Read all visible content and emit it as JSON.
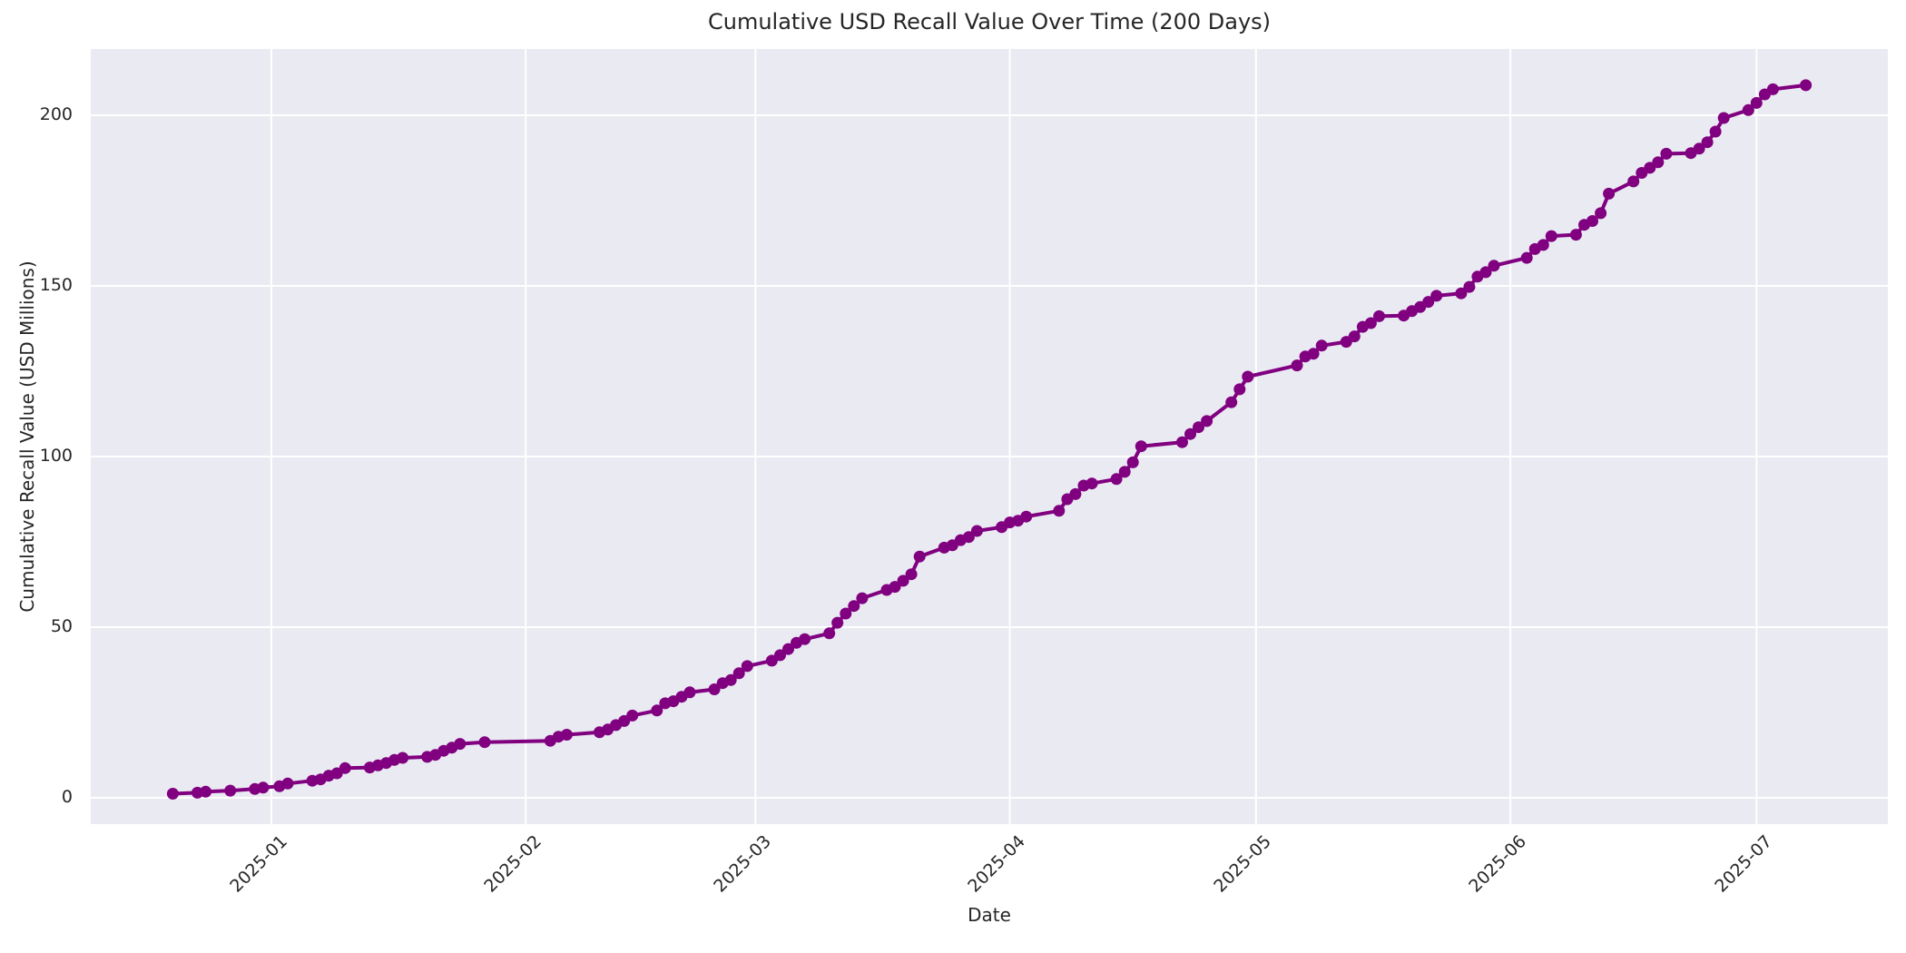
{
  "chart_data": {
    "type": "line",
    "title": "Cumulative USD Recall Value Over Time (200 Days)",
    "xlabel": "Date",
    "ylabel": "Cumulative Recall Value (USD Millions)",
    "legend": false,
    "grid": true,
    "style": "seaborn-darkgrid",
    "line_color": "#800080",
    "marker": "circle",
    "plot_bg_color": "#EAEAF2",
    "grid_color": "#FFFFFF",
    "text_color": "#262626",
    "figure_bg_color": "#FFFFFF",
    "ylim": [
      -7.7,
      219.4
    ],
    "xlim": [
      "2024-12-10",
      "2025-07-17"
    ],
    "y_ticks": [
      0,
      50,
      100,
      150,
      200
    ],
    "x_ticks": [
      {
        "date": "2025-01-01",
        "label": "2025-01"
      },
      {
        "date": "2025-02-01",
        "label": "2025-02"
      },
      {
        "date": "2025-03-01",
        "label": "2025-03"
      },
      {
        "date": "2025-04-01",
        "label": "2025-04"
      },
      {
        "date": "2025-05-01",
        "label": "2025-05"
      },
      {
        "date": "2025-06-01",
        "label": "2025-06"
      },
      {
        "date": "2025-07-01",
        "label": "2025-07"
      }
    ],
    "x": [
      "2024-12-20",
      "2024-12-23",
      "2024-12-24",
      "2024-12-27",
      "2024-12-30",
      "2024-12-31",
      "2025-01-02",
      "2025-01-03",
      "2025-01-06",
      "2025-01-07",
      "2025-01-08",
      "2025-01-09",
      "2025-01-10",
      "2025-01-13",
      "2025-01-14",
      "2025-01-15",
      "2025-01-16",
      "2025-01-17",
      "2025-01-20",
      "2025-01-21",
      "2025-01-22",
      "2025-01-23",
      "2025-01-24",
      "2025-01-27",
      "2025-02-04",
      "2025-02-05",
      "2025-02-06",
      "2025-02-10",
      "2025-02-11",
      "2025-02-12",
      "2025-02-13",
      "2025-02-14",
      "2025-02-17",
      "2025-02-18",
      "2025-02-19",
      "2025-02-20",
      "2025-02-21",
      "2025-02-24",
      "2025-02-25",
      "2025-02-26",
      "2025-02-27",
      "2025-02-28",
      "2025-03-03",
      "2025-03-04",
      "2025-03-05",
      "2025-03-06",
      "2025-03-07",
      "2025-03-10",
      "2025-03-11",
      "2025-03-12",
      "2025-03-13",
      "2025-03-14",
      "2025-03-17",
      "2025-03-18",
      "2025-03-19",
      "2025-03-20",
      "2025-03-21",
      "2025-03-24",
      "2025-03-25",
      "2025-03-26",
      "2025-03-27",
      "2025-03-28",
      "2025-03-31",
      "2025-04-01",
      "2025-04-02",
      "2025-04-03",
      "2025-04-07",
      "2025-04-08",
      "2025-04-09",
      "2025-04-10",
      "2025-04-11",
      "2025-04-14",
      "2025-04-15",
      "2025-04-16",
      "2025-04-17",
      "2025-04-22",
      "2025-04-23",
      "2025-04-24",
      "2025-04-25",
      "2025-04-28",
      "2025-04-29",
      "2025-04-30",
      "2025-05-06",
      "2025-05-07",
      "2025-05-08",
      "2025-05-09",
      "2025-05-12",
      "2025-05-13",
      "2025-05-14",
      "2025-05-15",
      "2025-05-16",
      "2025-05-19",
      "2025-05-20",
      "2025-05-21",
      "2025-05-22",
      "2025-05-23",
      "2025-05-26",
      "2025-05-27",
      "2025-05-28",
      "2025-05-29",
      "2025-05-30",
      "2025-06-03",
      "2025-06-04",
      "2025-06-05",
      "2025-06-06",
      "2025-06-09",
      "2025-06-10",
      "2025-06-11",
      "2025-06-12",
      "2025-06-13",
      "2025-06-16",
      "2025-06-17",
      "2025-06-18",
      "2025-06-19",
      "2025-06-20",
      "2025-06-23",
      "2025-06-24",
      "2025-06-25",
      "2025-06-26",
      "2025-06-27",
      "2025-06-30",
      "2025-07-01",
      "2025-07-02",
      "2025-07-03",
      "2025-07-07"
    ],
    "y": [
      1.2,
      1.5,
      1.8,
      2.1,
      2.6,
      3.0,
      3.4,
      4.2,
      5.0,
      5.4,
      6.5,
      7.2,
      8.7,
      8.9,
      9.5,
      10.2,
      11.1,
      11.7,
      12.0,
      12.6,
      13.8,
      14.7,
      15.8,
      16.3,
      16.7,
      17.9,
      18.5,
      19.2,
      20.0,
      21.3,
      22.5,
      24.1,
      25.6,
      27.7,
      28.3,
      29.6,
      30.9,
      31.8,
      33.6,
      34.5,
      36.5,
      38.6,
      40.2,
      41.8,
      43.6,
      45.4,
      46.5,
      48.2,
      51.3,
      54.0,
      56.2,
      58.5,
      60.9,
      61.8,
      63.6,
      65.5,
      70.7,
      73.3,
      74.0,
      75.5,
      76.4,
      78.2,
      79.3,
      80.7,
      81.2,
      82.4,
      84.1,
      87.5,
      89.0,
      91.5,
      92.1,
      93.4,
      95.5,
      98.3,
      103.0,
      104.2,
      106.6,
      108.6,
      110.4,
      115.9,
      119.7,
      123.4,
      126.7,
      129.3,
      130.1,
      132.5,
      133.6,
      135.2,
      138.0,
      139.1,
      141.1,
      141.3,
      142.6,
      143.8,
      145.3,
      147.1,
      147.8,
      149.7,
      152.7,
      154.0,
      155.9,
      158.2,
      160.8,
      162.0,
      164.6,
      165.0,
      167.9,
      169.0,
      171.3,
      177.0,
      180.6,
      183.1,
      184.6,
      186.2,
      188.7,
      188.9,
      190.2,
      192.1,
      195.2,
      199.2,
      201.5,
      203.6,
      206.1,
      207.6,
      208.8
    ]
  }
}
